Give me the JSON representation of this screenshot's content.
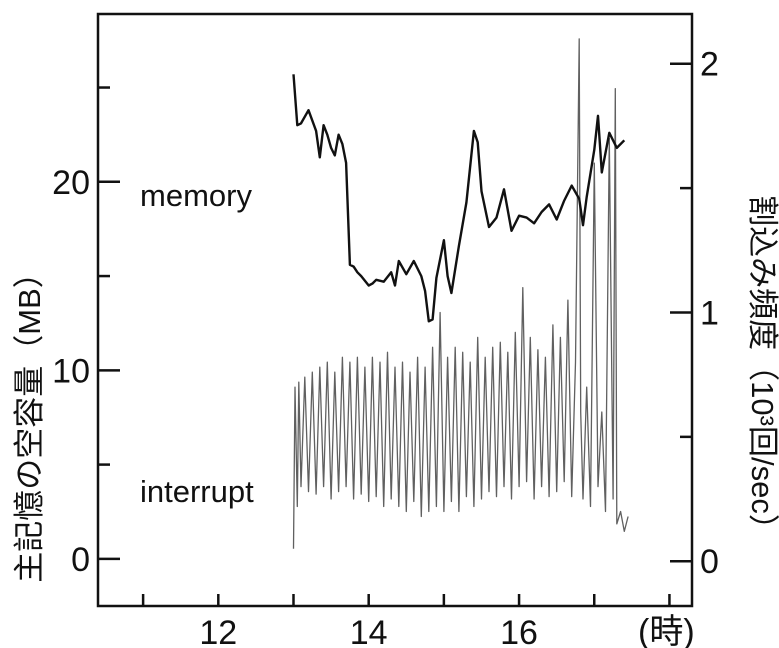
{
  "chart_data": {
    "type": "line",
    "title": "",
    "xlabel": "(時)",
    "ylabel_left": "主記憶の空容量（MB）",
    "ylabel_right": "割込み頻度（10³回/sec）",
    "xlim": [
      10.4,
      18.3
    ],
    "ylim_left": [
      -2.5,
      28.9
    ],
    "ylim_right": [
      -0.18,
      2.2
    ],
    "x_ticks": [
      12,
      14,
      16
    ],
    "y_left_ticks": [
      0,
      10,
      20
    ],
    "y_right_ticks": [
      0,
      1,
      2
    ],
    "grid": false,
    "legend": "none",
    "series": [
      {
        "name": "memory",
        "axis": "left",
        "x": [
          13.0,
          13.05,
          13.1,
          13.2,
          13.3,
          13.35,
          13.4,
          13.45,
          13.5,
          13.55,
          13.6,
          13.65,
          13.7,
          13.75,
          13.8,
          13.85,
          13.9,
          14.0,
          14.05,
          14.1,
          14.2,
          14.3,
          14.35,
          14.4,
          14.5,
          14.6,
          14.7,
          14.75,
          14.8,
          14.85,
          14.9,
          15.0,
          15.05,
          15.1,
          15.2,
          15.3,
          15.4,
          15.45,
          15.5,
          15.6,
          15.7,
          15.8,
          15.9,
          16.0,
          16.1,
          16.2,
          16.3,
          16.4,
          16.5,
          16.6,
          16.7,
          16.8,
          16.85,
          16.9,
          17.0,
          17.05,
          17.1,
          17.2,
          17.3,
          17.4
        ],
        "values": [
          25.7,
          23.0,
          23.1,
          23.8,
          22.7,
          21.3,
          23.0,
          22.5,
          21.8,
          21.4,
          22.5,
          22.0,
          21.0,
          15.6,
          15.5,
          15.2,
          15.0,
          14.5,
          14.6,
          14.8,
          14.7,
          15.2,
          14.5,
          15.8,
          15.1,
          15.8,
          15.0,
          14.2,
          12.6,
          12.7,
          14.9,
          16.9,
          15.0,
          14.1,
          16.6,
          18.9,
          22.7,
          22.1,
          19.5,
          17.6,
          18.1,
          19.6,
          17.4,
          18.2,
          18.1,
          17.8,
          18.4,
          18.8,
          18.0,
          19.0,
          19.8,
          19.1,
          17.7,
          19.2,
          21.7,
          23.5,
          20.5,
          22.6,
          21.8,
          22.2
        ]
      },
      {
        "name": "interrupt",
        "axis": "right",
        "x": [
          13.0,
          13.02,
          13.05,
          13.07,
          13.1,
          13.15,
          13.2,
          13.25,
          13.3,
          13.35,
          13.4,
          13.45,
          13.5,
          13.55,
          13.6,
          13.65,
          13.7,
          13.75,
          13.8,
          13.85,
          13.9,
          13.95,
          14.0,
          14.05,
          14.1,
          14.15,
          14.2,
          14.25,
          14.3,
          14.35,
          14.4,
          14.45,
          14.5,
          14.55,
          14.6,
          14.65,
          14.7,
          14.75,
          14.8,
          14.85,
          14.9,
          14.95,
          15.0,
          15.05,
          15.1,
          15.15,
          15.2,
          15.25,
          15.3,
          15.35,
          15.4,
          15.45,
          15.5,
          15.55,
          15.6,
          15.65,
          15.7,
          15.75,
          15.8,
          15.85,
          15.9,
          15.95,
          16.0,
          16.05,
          16.1,
          16.15,
          16.2,
          16.25,
          16.3,
          16.35,
          16.4,
          16.45,
          16.5,
          16.55,
          16.6,
          16.65,
          16.7,
          16.75,
          16.8,
          16.82,
          16.85,
          16.9,
          16.95,
          17.0,
          17.05,
          17.1,
          17.15,
          17.2,
          17.25,
          17.28,
          17.3,
          17.35,
          17.4,
          17.45
        ],
        "values": [
          0.05,
          0.7,
          0.22,
          0.72,
          0.3,
          0.74,
          0.28,
          0.76,
          0.27,
          0.78,
          0.3,
          0.8,
          0.25,
          0.76,
          0.28,
          0.82,
          0.3,
          0.8,
          0.25,
          0.82,
          0.27,
          0.78,
          0.24,
          0.82,
          0.26,
          0.8,
          0.22,
          0.84,
          0.25,
          0.78,
          0.22,
          0.8,
          0.2,
          0.76,
          0.24,
          0.82,
          0.18,
          0.78,
          0.2,
          0.86,
          0.22,
          1.0,
          0.2,
          0.82,
          0.24,
          0.86,
          0.2,
          0.84,
          0.26,
          0.8,
          0.22,
          0.9,
          0.25,
          0.82,
          0.28,
          0.86,
          0.26,
          0.88,
          0.3,
          0.84,
          0.25,
          0.92,
          0.3,
          1.1,
          0.32,
          0.9,
          0.25,
          0.85,
          0.3,
          0.82,
          0.26,
          0.95,
          0.28,
          0.9,
          0.32,
          1.05,
          0.26,
          0.8,
          2.1,
          0.6,
          0.25,
          0.7,
          0.22,
          1.6,
          0.3,
          0.6,
          0.2,
          1.7,
          0.25,
          1.9,
          0.15,
          0.2,
          0.12,
          0.18
        ]
      }
    ]
  }
}
